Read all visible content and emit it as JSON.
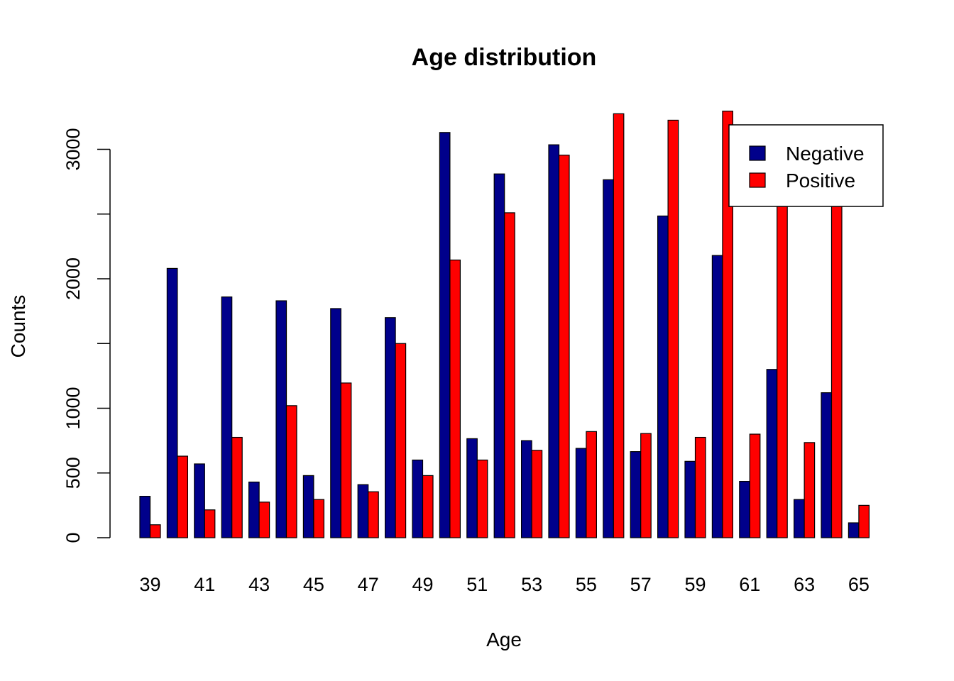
{
  "chart_data": {
    "type": "bar",
    "title": "Age distribution",
    "xlabel": "Age",
    "ylabel": "Counts",
    "categories": [
      "39",
      "40",
      "41",
      "42",
      "43",
      "44",
      "45",
      "46",
      "47",
      "48",
      "49",
      "50",
      "51",
      "52",
      "53",
      "54",
      "55",
      "56",
      "57",
      "58",
      "59",
      "60",
      "61",
      "62",
      "63",
      "64",
      "65"
    ],
    "x_tick_labels": [
      "39",
      "41",
      "43",
      "45",
      "47",
      "49",
      "51",
      "53",
      "55",
      "57",
      "59",
      "61",
      "63",
      "65"
    ],
    "y_ticks": [
      0,
      500,
      1000,
      2000,
      3000
    ],
    "y_tick_labels": [
      "0",
      "500",
      "1000",
      "2000",
      "3000"
    ],
    "y_minor_ticks": [
      1500,
      2500
    ],
    "ylim": [
      0,
      3300
    ],
    "series": [
      {
        "name": "Negative",
        "color": "#00008B",
        "values": [
          320,
          2080,
          570,
          1860,
          430,
          1830,
          480,
          1770,
          410,
          1700,
          600,
          3130,
          765,
          2810,
          750,
          3035,
          690,
          2765,
          665,
          2485,
          590,
          2180,
          435,
          1300,
          295,
          1120,
          115
        ]
      },
      {
        "name": "Positive",
        "color": "#FF0000",
        "values": [
          100,
          630,
          215,
          775,
          275,
          1020,
          295,
          1195,
          355,
          1500,
          480,
          2145,
          600,
          2510,
          675,
          2955,
          820,
          3275,
          805,
          3225,
          775,
          3295,
          800,
          2600,
          735,
          2600,
          250
        ]
      }
    ],
    "legend": {
      "position": "top-right"
    },
    "grid": false
  }
}
